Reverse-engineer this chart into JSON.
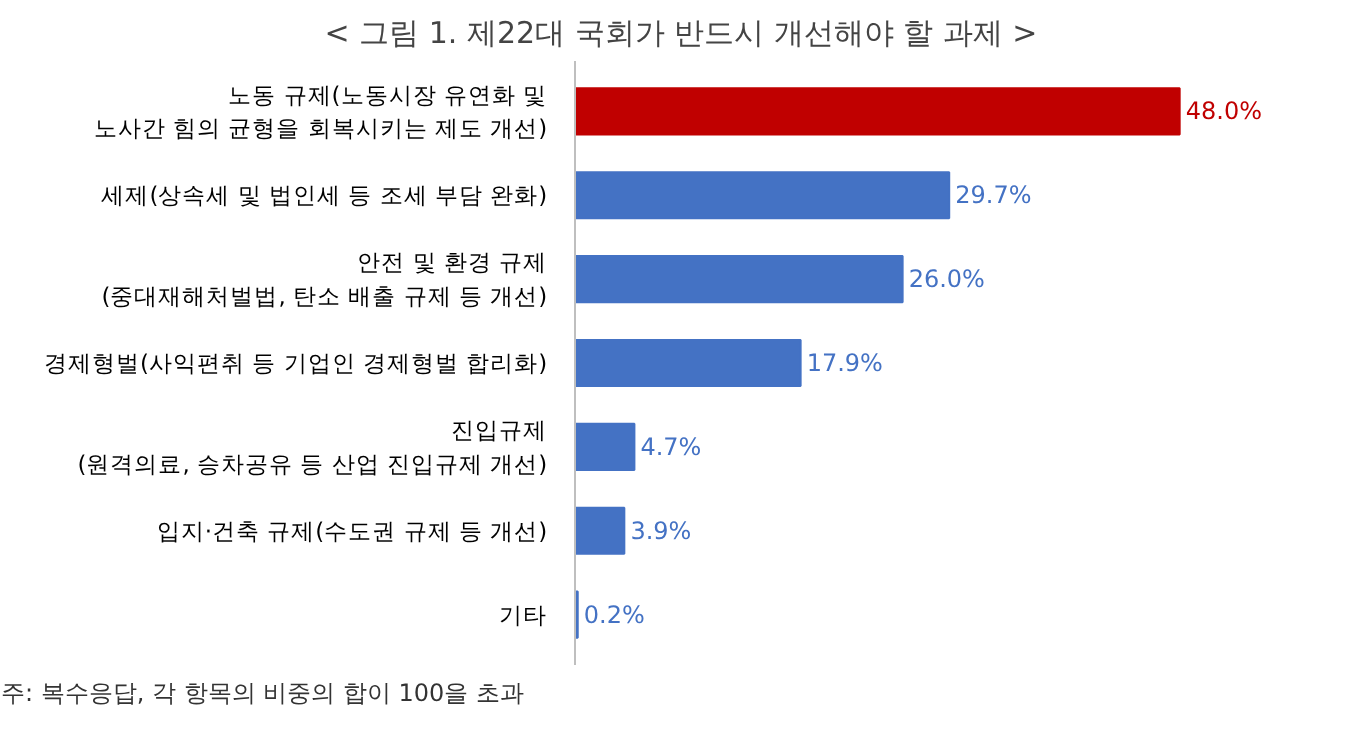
{
  "chart_data": {
    "type": "bar",
    "orientation": "horizontal",
    "title": "< 그림 1. 제22대 국회가 반드시 개선해야 할 과제 >",
    "categories": [
      "노동 규제(노동시장 유연화 및\n노사간 힘의 균형을 회복시키는 제도 개선)",
      "세제(상속세 및 법인세 등 조세 부담 완화)",
      "안전 및 환경 규제\n(중대재해처벌법, 탄소 배출 규제 등 개선)",
      "경제형벌(사익편취 등 기업인 경제형벌 합리화)",
      "진입규제\n(원격의료, 승차공유 등 산업 진입규제 개선)",
      "입지·건축 규제(수도권 규제 등 개선)",
      "기타"
    ],
    "values": [
      48.0,
      29.7,
      26.0,
      17.9,
      4.7,
      3.9,
      0.2
    ],
    "value_labels": [
      "48.0%",
      "29.7%",
      "26.0%",
      "17.9%",
      "4.7%",
      "3.9%",
      "0.2%"
    ],
    "colors": [
      "#c00000",
      "#4472c4",
      "#4472c4",
      "#4472c4",
      "#4472c4",
      "#4472c4",
      "#4472c4"
    ],
    "grid": false,
    "annotations": [
      "주: 복수응답, 각 항목의 비중의 합이 100을 초과"
    ]
  }
}
